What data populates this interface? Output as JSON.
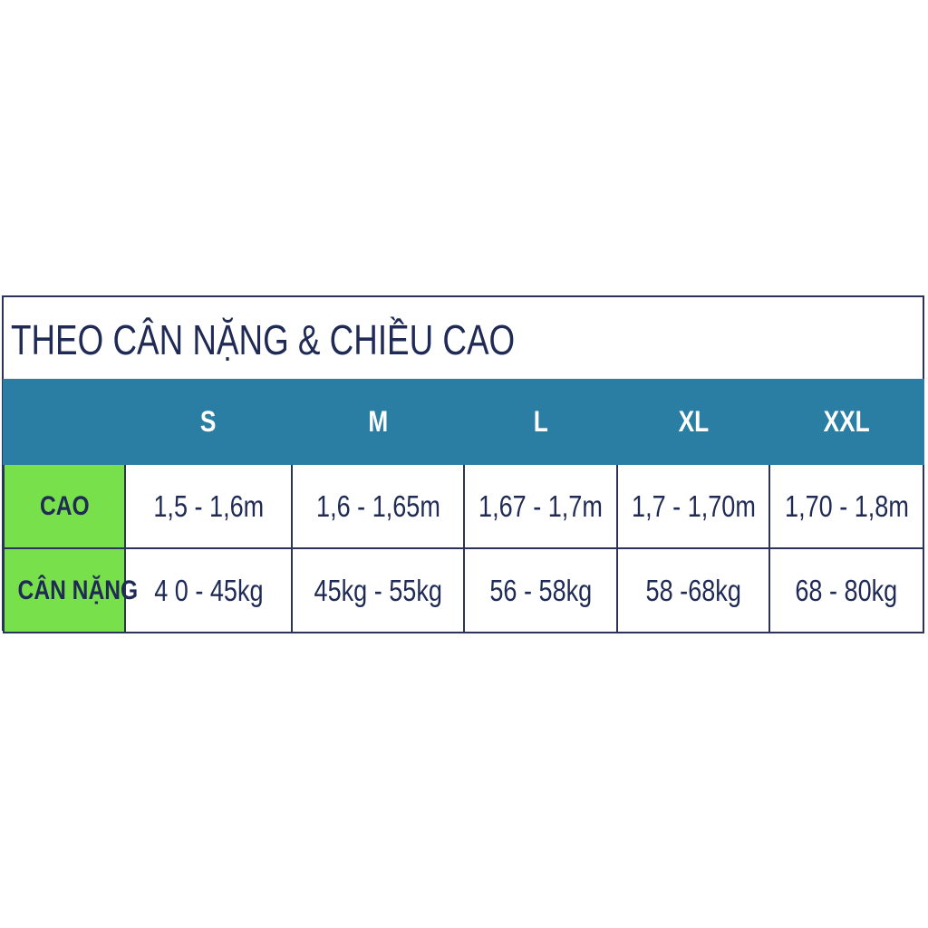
{
  "title": "THEO CÂN NẶNG & CHIỀU CAO",
  "colors": {
    "header_bg": "#2a7ea3",
    "row_label_bg": "#78e04a",
    "text": "#1f2a55",
    "border": "#2b3358"
  },
  "table": {
    "columns": [
      "",
      "S",
      "M",
      "L",
      "XL",
      "XXL"
    ],
    "rows": [
      {
        "label": "CAO",
        "values": [
          "1,5 - 1,6m",
          "1,6 - 1,65m",
          "1,67 - 1,7m",
          "1,7 - 1,70m",
          "1,70 - 1,8m"
        ]
      },
      {
        "label": "CÂN NẶNG",
        "values": [
          "4 0 - 45kg",
          "45kg - 55kg",
          "56 - 58kg",
          "58 -68kg",
          "68 - 80kg"
        ]
      }
    ]
  }
}
